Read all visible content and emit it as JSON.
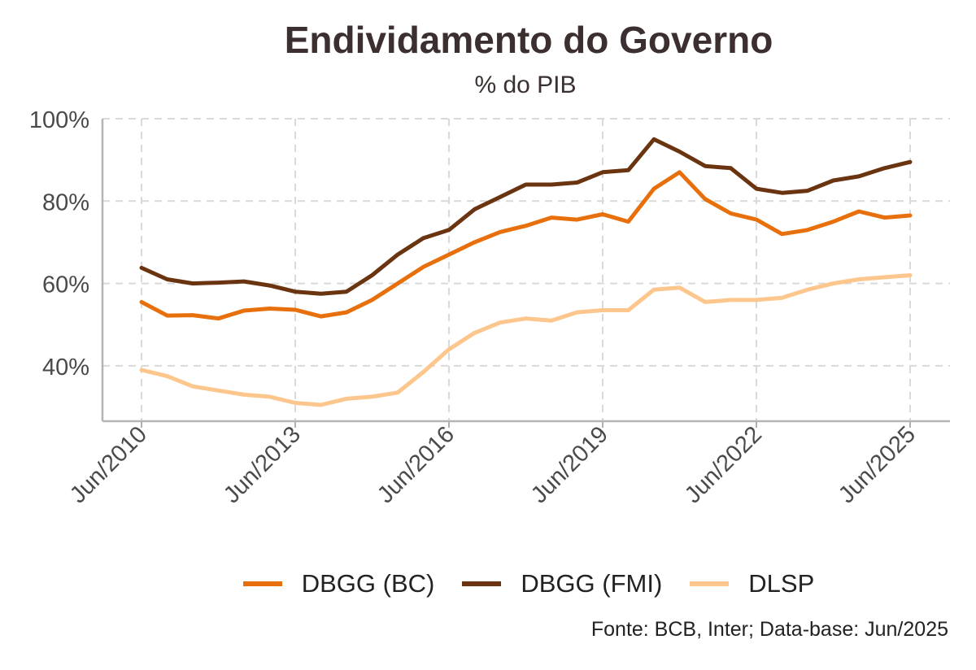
{
  "chart_data": {
    "type": "line",
    "title": "Endividamento do Governo",
    "subtitle": "% do PIB",
    "caption": "Fonte: BCB, Inter; Data-base: Jun/2025",
    "xlabel": "",
    "ylabel": "",
    "x_ticks": [
      "Jun/2010",
      "Jun/2013",
      "Jun/2016",
      "Jun/2019",
      "Jun/2022",
      "Jun/2025"
    ],
    "y_ticks": [
      "40%",
      "60%",
      "80%",
      "100%"
    ],
    "ylim": [
      28,
      100
    ],
    "grid": true,
    "legend_position": "bottom",
    "x": [
      2010.5,
      2011.0,
      2011.5,
      2012.0,
      2012.5,
      2013.0,
      2013.5,
      2014.0,
      2014.5,
      2015.0,
      2015.5,
      2016.0,
      2016.5,
      2017.0,
      2017.5,
      2018.0,
      2018.5,
      2019.0,
      2019.5,
      2020.0,
      2020.5,
      2021.0,
      2021.5,
      2022.0,
      2022.5,
      2023.0,
      2023.5,
      2024.0,
      2024.5,
      2025.0,
      2025.5
    ],
    "series": [
      {
        "name": "DBGG (BC)",
        "color": "#e8700c",
        "values": [
          55.5,
          52.2,
          52.3,
          51.5,
          53.4,
          53.9,
          53.6,
          52.0,
          53.0,
          56.0,
          60.0,
          64.0,
          67.0,
          70.0,
          72.5,
          74.0,
          76.0,
          75.5,
          76.8,
          75.0,
          83.0,
          87.0,
          80.5,
          77.0,
          75.5,
          72.0,
          73.0,
          75.0,
          77.5,
          76.0,
          76.5
        ]
      },
      {
        "name": "DBGG (FMI)",
        "color": "#6b3410",
        "values": [
          63.8,
          61.0,
          60.0,
          60.2,
          60.5,
          59.5,
          58.0,
          57.5,
          58.0,
          62.0,
          67.0,
          71.0,
          73.0,
          78.0,
          81.0,
          84.0,
          84.0,
          84.5,
          87.0,
          87.5,
          95.0,
          92.0,
          88.5,
          88.0,
          83.0,
          82.0,
          82.5,
          85.0,
          86.0,
          88.0,
          89.5
        ]
      },
      {
        "name": "DLSP",
        "color": "#fcc68c",
        "values": [
          39.0,
          37.5,
          35.0,
          34.0,
          33.0,
          32.5,
          31.0,
          30.5,
          32.0,
          32.5,
          33.5,
          38.5,
          44.0,
          48.0,
          50.5,
          51.5,
          51.0,
          53.0,
          53.5,
          53.5,
          58.5,
          59.0,
          55.5,
          56.0,
          56.0,
          56.5,
          58.5,
          60.0,
          61.0,
          61.5,
          62.0
        ]
      }
    ]
  }
}
